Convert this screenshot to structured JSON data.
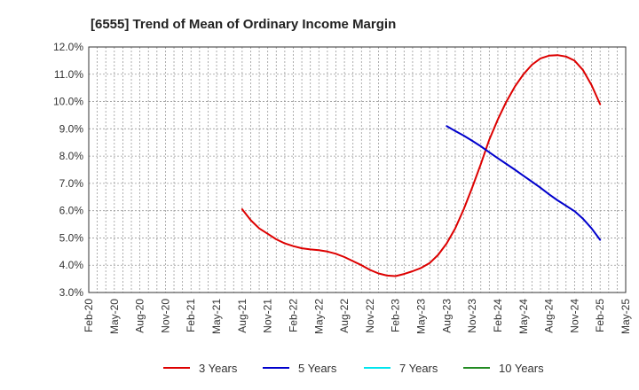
{
  "chart_data": {
    "type": "line",
    "title": "[6555]  Trend of Mean of Ordinary Income Margin",
    "xlabel": "",
    "ylabel": "",
    "x_ticks": [
      "Feb-20",
      "May-20",
      "Aug-20",
      "Nov-20",
      "Feb-21",
      "May-21",
      "Aug-21",
      "Nov-21",
      "Feb-22",
      "May-22",
      "Aug-22",
      "Nov-22",
      "Feb-23",
      "May-23",
      "Aug-23",
      "Nov-23",
      "Feb-24",
      "May-24",
      "Aug-24",
      "Nov-24",
      "Feb-25",
      "May-25"
    ],
    "y_ticks": [
      "3.0%",
      "4.0%",
      "5.0%",
      "6.0%",
      "7.0%",
      "8.0%",
      "9.0%",
      "10.0%",
      "11.0%",
      "12.0%"
    ],
    "ylim": [
      3.0,
      12.0
    ],
    "grid": true,
    "legend_position": "bottom",
    "series": [
      {
        "name": "3 Years",
        "color": "#dd0000",
        "x": [
          "Aug-21",
          "Sep-21",
          "Oct-21",
          "Nov-21",
          "Dec-21",
          "Jan-22",
          "Feb-22",
          "Mar-22",
          "Apr-22",
          "May-22",
          "Jun-22",
          "Jul-22",
          "Aug-22",
          "Sep-22",
          "Oct-22",
          "Nov-22",
          "Dec-22",
          "Jan-23",
          "Feb-23",
          "Mar-23",
          "Apr-23",
          "May-23",
          "Jun-23",
          "Jul-23",
          "Aug-23",
          "Sep-23",
          "Oct-23",
          "Nov-23",
          "Dec-23",
          "Jan-24",
          "Feb-24",
          "Mar-24",
          "Apr-24",
          "May-24",
          "Jun-24",
          "Jul-24",
          "Aug-24",
          "Sep-24",
          "Oct-24",
          "Nov-24",
          "Dec-24",
          "Jan-25",
          "Feb-25"
        ],
        "values": [
          6.05,
          5.65,
          5.35,
          5.15,
          4.95,
          4.8,
          4.7,
          4.62,
          4.58,
          4.55,
          4.5,
          4.42,
          4.3,
          4.15,
          4.0,
          3.83,
          3.7,
          3.62,
          3.6,
          3.68,
          3.78,
          3.9,
          4.08,
          4.38,
          4.8,
          5.35,
          6.05,
          6.85,
          7.7,
          8.6,
          9.35,
          10.0,
          10.55,
          11.0,
          11.35,
          11.58,
          11.68,
          11.7,
          11.65,
          11.5,
          11.15,
          10.6,
          9.9
        ]
      },
      {
        "name": "5 Years",
        "color": "#0000cc",
        "x": [
          "Aug-23",
          "Sep-23",
          "Oct-23",
          "Nov-23",
          "Dec-23",
          "Jan-24",
          "Feb-24",
          "Mar-24",
          "Apr-24",
          "May-24",
          "Jun-24",
          "Jul-24",
          "Aug-24",
          "Sep-24",
          "Oct-24",
          "Nov-24",
          "Dec-24",
          "Jan-25",
          "Feb-25"
        ],
        "values": [
          9.1,
          8.92,
          8.75,
          8.56,
          8.36,
          8.14,
          7.92,
          7.71,
          7.5,
          7.28,
          7.06,
          6.84,
          6.6,
          6.38,
          6.18,
          5.98,
          5.7,
          5.35,
          4.93
        ]
      },
      {
        "name": "7 Years",
        "color": "#00e5ee",
        "x": [],
        "values": []
      },
      {
        "name": "10 Years",
        "color": "#228b22",
        "x": [],
        "values": []
      }
    ]
  }
}
